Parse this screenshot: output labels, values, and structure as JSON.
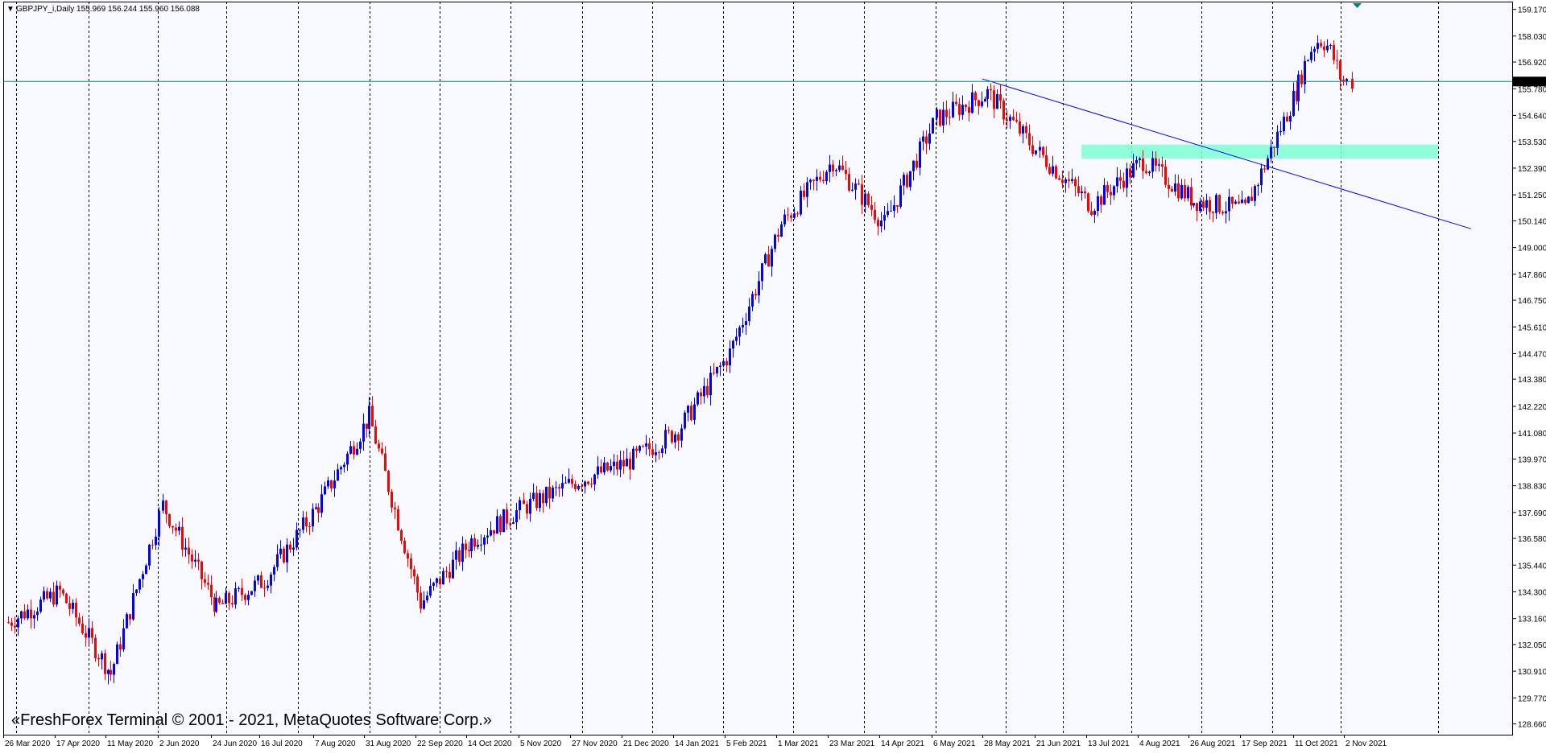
{
  "header": {
    "menu_glyph": "▼",
    "text": "GBPJPY_i,Daily  155.969 156.244 155.960 156.088"
  },
  "watermark": "«FreshForex Terminal © 2001 - 2021, MetaQuotes Software Corp.»",
  "colors": {
    "background": "#f8f8ff",
    "frame": "#000000",
    "bull": "#0000ff",
    "bear": "#ff0000",
    "grid": "#000000",
    "price_line": "#008080",
    "zone": "#7fffd4",
    "trendline": "#0000ff",
    "price_tag": "#000000",
    "price_tag_text": "#ffffff"
  },
  "price_axis": {
    "ticks": [
      "159.170",
      "158.030",
      "156.920",
      "155.780",
      "154.640",
      "153.530",
      "152.390",
      "151.250",
      "150.140",
      "149.000",
      "147.860",
      "146.750",
      "145.610",
      "144.470",
      "143.380",
      "142.220",
      "141.080",
      "139.970",
      "138.830",
      "137.690",
      "136.580",
      "135.440",
      "134.300",
      "133.160",
      "132.050",
      "130.910",
      "129.770",
      "128.660"
    ],
    "current_price": "156.088"
  },
  "time_axis": {
    "labels": [
      "26 Mar 2020",
      "17 Apr 2020",
      "11 May 2020",
      "2 Jun 2020",
      "24 Jun 2020",
      "16 Jul 2020",
      "7 Aug 2020",
      "31 Aug 2020",
      "22 Sep 2020",
      "14 Oct 2020",
      "5 Nov 2020",
      "27 Nov 2020",
      "21 Dec 2020",
      "14 Jan 2021",
      "5 Feb 2021",
      "1 Mar 2021",
      "23 Mar 2021",
      "14 Apr 2021",
      "6 May 2021",
      "28 May 2021",
      "21 Jun 2021",
      "13 Jul 2021",
      "4 Aug 2021",
      "26 Aug 2021",
      "17 Sep 2021",
      "11 Oct 2021",
      "2 Nov 2021"
    ]
  },
  "chart_data": {
    "type": "candlestick",
    "symbol": "GBPJPY_i",
    "timeframe": "Daily",
    "ylim": [
      128.2,
      159.5
    ],
    "grid": "vertical dashed separators",
    "price_line": 156.088,
    "key_closes": [
      {
        "date": "26 Mar 2020",
        "value": 133.0
      },
      {
        "date": "17 Apr 2020",
        "value": 134.3
      },
      {
        "date": "11 May 2020",
        "value": 130.8
      },
      {
        "date": "2 Jun 2020",
        "value": 138.0
      },
      {
        "date": "24 Jun 2020",
        "value": 133.6
      },
      {
        "date": "16 Jul 2020",
        "value": 134.8
      },
      {
        "date": "7 Aug 2020",
        "value": 138.0
      },
      {
        "date": "31 Aug 2020",
        "value": 141.8
      },
      {
        "date": "22 Sep 2020",
        "value": 133.8
      },
      {
        "date": "14 Oct 2020",
        "value": 136.5
      },
      {
        "date": "5 Nov 2020",
        "value": 137.9
      },
      {
        "date": "27 Nov 2020",
        "value": 139.0
      },
      {
        "date": "21 Dec 2020",
        "value": 139.8
      },
      {
        "date": "14 Jan 2021",
        "value": 141.2
      },
      {
        "date": "5 Feb 2021",
        "value": 144.5
      },
      {
        "date": "1 Mar 2021",
        "value": 150.0
      },
      {
        "date": "23 Mar 2021",
        "value": 152.7
      },
      {
        "date": "14 Apr 2021",
        "value": 150.0
      },
      {
        "date": "6 May 2021",
        "value": 154.5
      },
      {
        "date": "28 May 2021",
        "value": 155.6
      },
      {
        "date": "21 Jun 2021",
        "value": 153.0
      },
      {
        "date": "13 Jul 2021",
        "value": 150.8
      },
      {
        "date": "4 Aug 2021",
        "value": 152.7
      },
      {
        "date": "26 Aug 2021",
        "value": 151.0
      },
      {
        "date": "17 Sep 2021",
        "value": 150.6
      },
      {
        "date": "11 Oct 2021",
        "value": 156.0
      },
      {
        "date": "2 Nov 2021",
        "value": 156.1
      }
    ],
    "annotations": [
      {
        "type": "horizontal_zone",
        "from": 152.8,
        "to": 153.4
      },
      {
        "type": "trendline",
        "from": {
          "date": "28 May 2021",
          "value": 156.2
        },
        "to": {
          "date": "2 Nov 2021",
          "value": 149.8
        }
      }
    ]
  }
}
